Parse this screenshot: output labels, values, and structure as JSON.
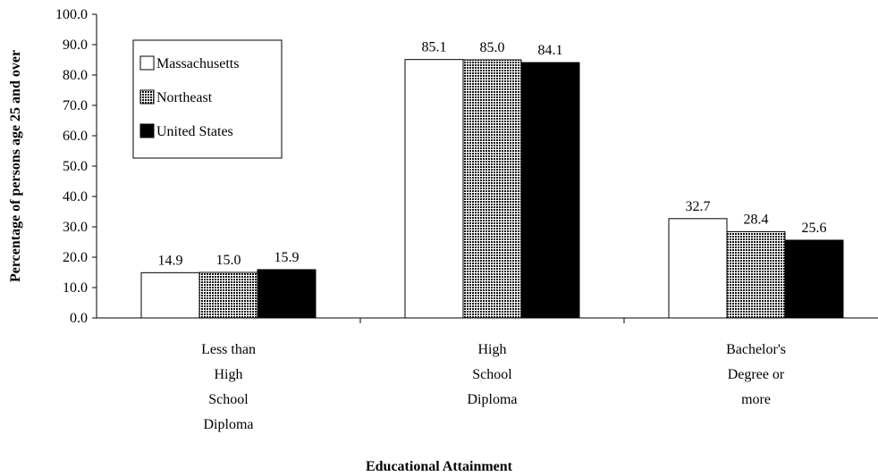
{
  "chart_data": {
    "type": "bar",
    "title": "",
    "xlabel": "Educational Attainment",
    "ylabel": "Percentage of persons age 25 and over",
    "ylim": [
      0,
      100
    ],
    "y_tick_step": 10,
    "y_tick_labels": [
      "0.0",
      "10.0",
      "20.0",
      "30.0",
      "40.0",
      "50.0",
      "60.0",
      "70.0",
      "80.0",
      "90.0",
      "100.0"
    ],
    "grid": false,
    "legend_position": "top-left",
    "categories": [
      [
        "Less than",
        "High",
        "School",
        "Diploma"
      ],
      [
        "High",
        "School",
        "Diploma"
      ],
      [
        "Bachelor's",
        "Degree or",
        "more"
      ]
    ],
    "series": [
      {
        "name": "Massachusetts",
        "values": [
          14.9,
          85.1,
          32.7
        ],
        "value_labels": [
          "14.9",
          "85.1",
          "32.7"
        ],
        "fill": "#ffffff",
        "pattern": "none"
      },
      {
        "name": "Northeast",
        "values": [
          15.0,
          85.0,
          28.4
        ],
        "value_labels": [
          "15.0",
          "85.0",
          "28.4"
        ],
        "fill": "#555555",
        "pattern": "crosshatch"
      },
      {
        "name": "United States",
        "values": [
          15.9,
          84.1,
          25.6
        ],
        "value_labels": [
          "15.9",
          "84.1",
          "25.6"
        ],
        "fill": "#000000",
        "pattern": "none"
      }
    ]
  }
}
